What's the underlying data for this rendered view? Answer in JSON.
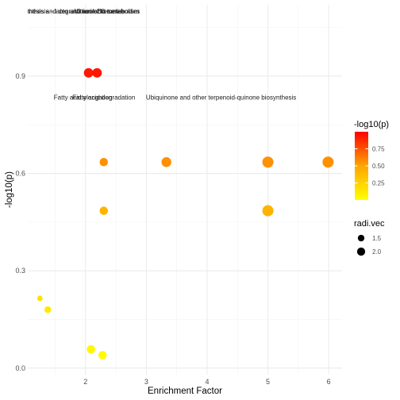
{
  "chart_data": {
    "type": "scatter",
    "xlabel": "Enrichment Factor",
    "ylabel": "-log10(p)",
    "xlim": [
      1.05,
      6.22
    ],
    "ylim": [
      -0.02,
      1.12
    ],
    "x_ticks": [
      2,
      3,
      4,
      5,
      6
    ],
    "y_ticks": [
      0.0,
      0.3,
      0.6,
      0.9
    ],
    "y_tick_labels": [
      "0.0",
      "0.3",
      "0.6",
      "0.9"
    ],
    "grid": true,
    "points": [
      {
        "x": 2.05,
        "y": 0.91,
        "color": 0.93,
        "size": 1.9
      },
      {
        "x": 2.19,
        "y": 0.91,
        "color": 0.93,
        "size": 1.9
      },
      {
        "x": 2.3,
        "y": 0.635,
        "color": 0.56,
        "size": 1.6
      },
      {
        "x": 3.33,
        "y": 0.635,
        "color": 0.56,
        "size": 2.0
      },
      {
        "x": 5.0,
        "y": 0.635,
        "color": 0.56,
        "size": 2.35
      },
      {
        "x": 5.99,
        "y": 0.635,
        "color": 0.56,
        "size": 2.35
      },
      {
        "x": 2.3,
        "y": 0.485,
        "color": 0.42,
        "size": 1.6
      },
      {
        "x": 5.0,
        "y": 0.485,
        "color": 0.42,
        "size": 2.35
      },
      {
        "x": 1.25,
        "y": 0.215,
        "color": 0.17,
        "size": 0.8
      },
      {
        "x": 1.38,
        "y": 0.18,
        "color": 0.13,
        "size": 1.15
      },
      {
        "x": 2.09,
        "y": 0.058,
        "color": 0.04,
        "size": 1.6
      },
      {
        "x": 2.28,
        "y": 0.04,
        "color": 0.03,
        "size": 1.6
      }
    ],
    "annotations": [
      {
        "text": "Glycosphingolipid biosynthesis - lacto and neolacto series",
        "x": 1.31,
        "y": 1.1
      },
      {
        "text": "Synthesis and degradation of ketone bodies",
        "x": 1.88,
        "y": 1.1
      },
      {
        "text": "Vitamin B6 metabolism",
        "x": 2.35,
        "y": 1.1
      },
      {
        "text": "Fatty acid elongation",
        "x": 1.96,
        "y": 0.835
      },
      {
        "text": "Fatty acid degradation",
        "x": 2.3,
        "y": 0.835
      },
      {
        "text": "Ubiquinone and other terpenoid-quinone biosynthesis",
        "x": 4.23,
        "y": 0.835
      }
    ],
    "legend_color": {
      "title": "-log10(p)",
      "ticks": [
        0.75,
        0.5,
        0.25
      ],
      "tick_labels": [
        "0.75",
        "0.50",
        "0.25"
      ],
      "range": [
        0.0,
        1.0
      ],
      "colors": [
        "#FFFF00",
        "#FFA500",
        "#FF0000"
      ]
    },
    "legend_size": {
      "title": "radi.vec",
      "values": [
        1.5,
        2.0
      ],
      "labels": [
        "1.5",
        "2.0"
      ]
    },
    "legend_placement": "right"
  }
}
